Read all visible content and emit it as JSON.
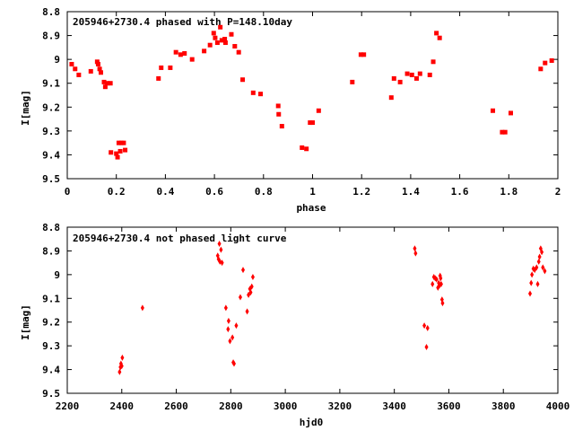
{
  "chart_data": [
    {
      "type": "scatter",
      "title": "205946+2730.4 phased with P=148.10day",
      "xlabel": "phase",
      "ylabel": "I[mag]",
      "xlim": [
        0,
        2
      ],
      "ylim": [
        8.8,
        9.5
      ],
      "y_inverted": true,
      "xticks": [
        "0",
        "0.2",
        "0.4",
        "0.6",
        "0.8",
        "1",
        "1.2",
        "1.4",
        "1.6",
        "1.8",
        "2"
      ],
      "xtick_values": [
        0,
        0.2,
        0.4,
        0.6,
        0.8,
        1.0,
        1.2,
        1.4,
        1.6,
        1.8,
        2.0
      ],
      "yticks": [
        "8.8",
        "8.9",
        "9",
        "9.1",
        "9.2",
        "9.3",
        "9.4",
        "9.5"
      ],
      "ytick_values": [
        8.8,
        8.9,
        9.0,
        9.1,
        9.2,
        9.3,
        9.4,
        9.5
      ],
      "grid": false,
      "marker_color": "#ff0000",
      "points": [
        [
          0.018,
          9.02
        ],
        [
          0.032,
          9.04
        ],
        [
          0.047,
          9.065
        ],
        [
          0.096,
          9.05
        ],
        [
          0.122,
          9.01
        ],
        [
          0.126,
          9.02
        ],
        [
          0.132,
          9.04
        ],
        [
          0.137,
          9.055
        ],
        [
          0.15,
          9.095
        ],
        [
          0.155,
          9.115
        ],
        [
          0.163,
          9.1
        ],
        [
          0.176,
          9.1
        ],
        [
          0.178,
          9.39
        ],
        [
          0.2,
          9.395
        ],
        [
          0.205,
          9.41
        ],
        [
          0.21,
          9.35
        ],
        [
          0.216,
          9.385
        ],
        [
          0.22,
          9.35
        ],
        [
          0.23,
          9.35
        ],
        [
          0.236,
          9.38
        ],
        [
          0.372,
          9.08
        ],
        [
          0.383,
          9.035
        ],
        [
          0.42,
          9.035
        ],
        [
          0.443,
          8.97
        ],
        [
          0.462,
          8.98
        ],
        [
          0.478,
          8.975
        ],
        [
          0.509,
          9.0
        ],
        [
          0.558,
          8.965
        ],
        [
          0.582,
          8.94
        ],
        [
          0.597,
          8.89
        ],
        [
          0.603,
          8.91
        ],
        [
          0.612,
          8.93
        ],
        [
          0.624,
          8.865
        ],
        [
          0.63,
          8.92
        ],
        [
          0.642,
          8.915
        ],
        [
          0.645,
          8.93
        ],
        [
          0.669,
          8.895
        ],
        [
          0.683,
          8.945
        ],
        [
          0.699,
          8.97
        ],
        [
          0.715,
          9.085
        ],
        [
          0.758,
          9.14
        ],
        [
          0.788,
          9.145
        ],
        [
          0.86,
          9.195
        ],
        [
          0.862,
          9.23
        ],
        [
          0.875,
          9.28
        ],
        [
          0.957,
          9.37
        ],
        [
          0.975,
          9.375
        ],
        [
          0.99,
          9.265
        ],
        [
          1.0,
          9.265
        ],
        [
          1.025,
          9.215
        ],
        [
          1.162,
          9.095
        ],
        [
          1.197,
          8.98
        ],
        [
          1.209,
          8.98
        ],
        [
          1.321,
          9.16
        ],
        [
          1.332,
          9.08
        ],
        [
          1.357,
          9.095
        ],
        [
          1.386,
          9.06
        ],
        [
          1.405,
          9.065
        ],
        [
          1.424,
          9.08
        ],
        [
          1.438,
          9.06
        ],
        [
          1.478,
          9.065
        ],
        [
          1.492,
          9.01
        ],
        [
          1.505,
          8.89
        ],
        [
          1.518,
          8.91
        ],
        [
          1.735,
          9.215
        ],
        [
          1.773,
          9.305
        ],
        [
          1.785,
          9.305
        ],
        [
          1.808,
          9.225
        ],
        [
          1.93,
          9.04
        ],
        [
          1.948,
          9.015
        ],
        [
          1.975,
          9.005
        ]
      ]
    },
    {
      "type": "scatter",
      "title": "205946+2730.4 not phased light curve",
      "xlabel": "hjd0",
      "ylabel": "I[mag]",
      "xlim": [
        2200,
        4000
      ],
      "ylim": [
        8.8,
        9.5
      ],
      "y_inverted": true,
      "xticks": [
        "2200",
        "2400",
        "2600",
        "2800",
        "3000",
        "3200",
        "3400",
        "3600",
        "3800",
        "4000"
      ],
      "xtick_values": [
        2200,
        2400,
        2600,
        2800,
        3000,
        3200,
        3400,
        3600,
        3800,
        4000
      ],
      "yticks": [
        "8.8",
        "8.9",
        "9",
        "9.1",
        "9.2",
        "9.3",
        "9.4",
        "9.5"
      ],
      "ytick_values": [
        8.8,
        8.9,
        9.0,
        9.1,
        9.2,
        9.3,
        9.4,
        9.5
      ],
      "grid": false,
      "marker_color": "#ff0000",
      "points": [
        [
          2392,
          9.41
        ],
        [
          2395,
          9.39
        ],
        [
          2397,
          9.375
        ],
        [
          2400,
          9.385
        ],
        [
          2402,
          9.35
        ],
        [
          2476,
          9.14
        ],
        [
          2752,
          8.92
        ],
        [
          2755,
          8.935
        ],
        [
          2758,
          8.87
        ],
        [
          2760,
          8.945
        ],
        [
          2764,
          8.895
        ],
        [
          2768,
          8.95
        ],
        [
          2782,
          9.14
        ],
        [
          2790,
          9.23
        ],
        [
          2792,
          9.195
        ],
        [
          2797,
          9.28
        ],
        [
          2806,
          9.265
        ],
        [
          2809,
          9.37
        ],
        [
          2812,
          9.375
        ],
        [
          2820,
          9.215
        ],
        [
          2835,
          9.095
        ],
        [
          2845,
          8.98
        ],
        [
          2860,
          9.155
        ],
        [
          2865,
          9.085
        ],
        [
          2870,
          9.06
        ],
        [
          2873,
          9.075
        ],
        [
          2877,
          9.05
        ],
        [
          2881,
          9.01
        ],
        [
          3475,
          8.89
        ],
        [
          3478,
          8.91
        ],
        [
          3510,
          9.215
        ],
        [
          3518,
          9.305
        ],
        [
          3522,
          9.225
        ],
        [
          3540,
          9.04
        ],
        [
          3545,
          9.01
        ],
        [
          3550,
          9.015
        ],
        [
          3555,
          9.02
        ],
        [
          3560,
          9.055
        ],
        [
          3563,
          9.035
        ],
        [
          3566,
          9.045
        ],
        [
          3568,
          9.005
        ],
        [
          3570,
          9.015
        ],
        [
          3572,
          9.04
        ],
        [
          3575,
          9.105
        ],
        [
          3577,
          9.12
        ],
        [
          3898,
          9.08
        ],
        [
          3902,
          9.035
        ],
        [
          3905,
          9.0
        ],
        [
          3910,
          8.975
        ],
        [
          3915,
          8.98
        ],
        [
          3922,
          8.97
        ],
        [
          3926,
          9.04
        ],
        [
          3930,
          8.945
        ],
        [
          3933,
          8.925
        ],
        [
          3937,
          8.89
        ],
        [
          3941,
          8.905
        ],
        [
          3945,
          8.97
        ],
        [
          3952,
          8.985
        ]
      ]
    }
  ]
}
